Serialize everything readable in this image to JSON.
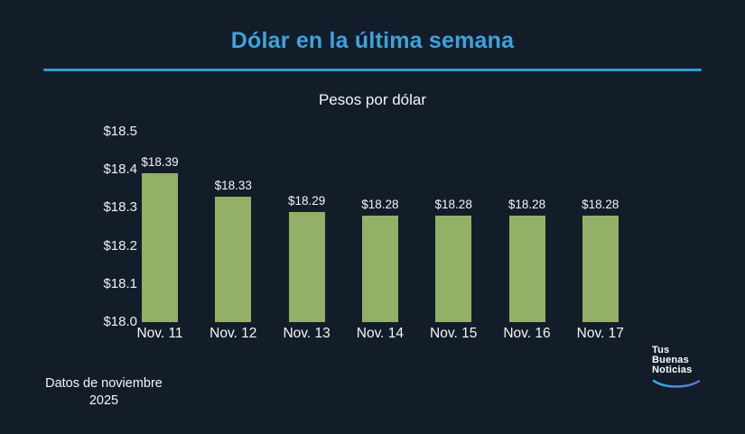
{
  "page": {
    "title": "Dólar en la última semana",
    "subtitle": "Pesos por dólar",
    "footnote_line1": "Datos de noviembre",
    "footnote_line2": "2025",
    "background_color": "#131d2a",
    "accent_color": "#3fa3da",
    "divider_color": "#2d9ed3"
  },
  "chart_data": {
    "type": "bar",
    "title": "Dólar en la última semana",
    "subtitle": "Pesos por dólar",
    "categories": [
      "Nov. 11",
      "Nov. 12",
      "Nov. 13",
      "Nov. 14",
      "Nov. 15",
      "Nov. 16",
      "Nov. 17"
    ],
    "values": [
      18.39,
      18.33,
      18.29,
      18.28,
      18.28,
      18.28,
      18.28
    ],
    "value_labels": [
      "$18.39",
      "$18.33",
      "$18.29",
      "$18.28",
      "$18.28",
      "$18.28",
      "$18.28"
    ],
    "xlabel": "",
    "ylabel": "",
    "ylim": [
      18.0,
      18.5
    ],
    "ytick_step": 0.1,
    "ytick_labels": [
      "$18.0",
      "$18.1",
      "$18.2",
      "$18.3",
      "$18.4",
      "$18.5"
    ],
    "bar_color": "#93b067",
    "grid": false,
    "legend": "none",
    "text_color": "#f4f6f8"
  },
  "logo": {
    "line1": "Tus",
    "line2": "Buenas",
    "line3": "Noticias",
    "swoosh_color_start": "#2bb9e9",
    "swoosh_color_end": "#6a6fd8"
  }
}
